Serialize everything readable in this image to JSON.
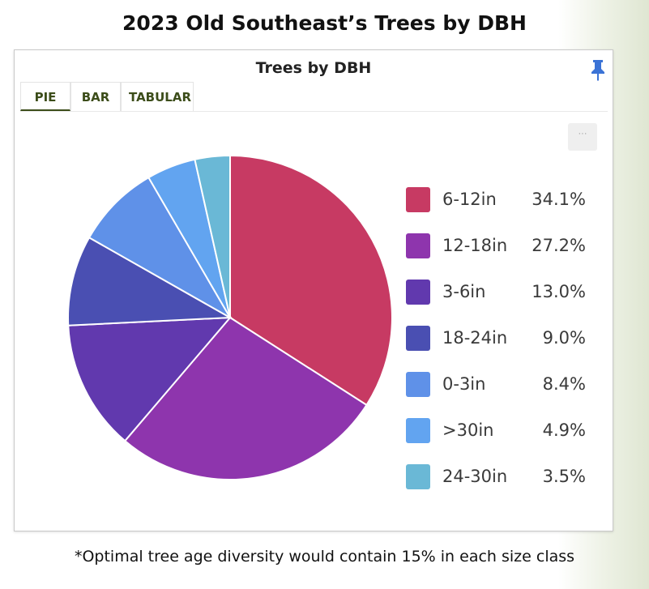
{
  "page": {
    "title": "2023 Old Southeast’s Trees by DBH",
    "footnote": "*Optimal tree age diversity would contain 15% in each size class"
  },
  "card": {
    "title": "Trees by DBH",
    "pin_icon": "pin-icon",
    "more_label": "···",
    "tabs": [
      {
        "label": "PIE",
        "active": true
      },
      {
        "label": "BAR",
        "active": false
      },
      {
        "label": "TABULAR",
        "active": false
      }
    ]
  },
  "chart_data": {
    "type": "pie",
    "title": "Trees by DBH",
    "legend_position": "right",
    "slices": [
      {
        "label": "6-12in",
        "value": 34.1,
        "display": "34.1%",
        "color": "#c73a63"
      },
      {
        "label": "12-18in",
        "value": 27.2,
        "display": "27.2%",
        "color": "#8e35ad"
      },
      {
        "label": "3-6in",
        "value": 13.0,
        "display": "13.0%",
        "color": "#6139ae"
      },
      {
        "label": "18-24in",
        "value": 9.0,
        "display": "9.0%",
        "color": "#4a4fb2"
      },
      {
        "label": "0-3in",
        "value": 8.4,
        "display": "8.4%",
        "color": "#5f91e8"
      },
      {
        "label": ">30in",
        "value": 4.9,
        "display": "4.9%",
        "color": "#62a4f0"
      },
      {
        "label": "24-30in",
        "value": 3.5,
        "display": "3.5%",
        "color": "#6ab8d6"
      }
    ]
  }
}
